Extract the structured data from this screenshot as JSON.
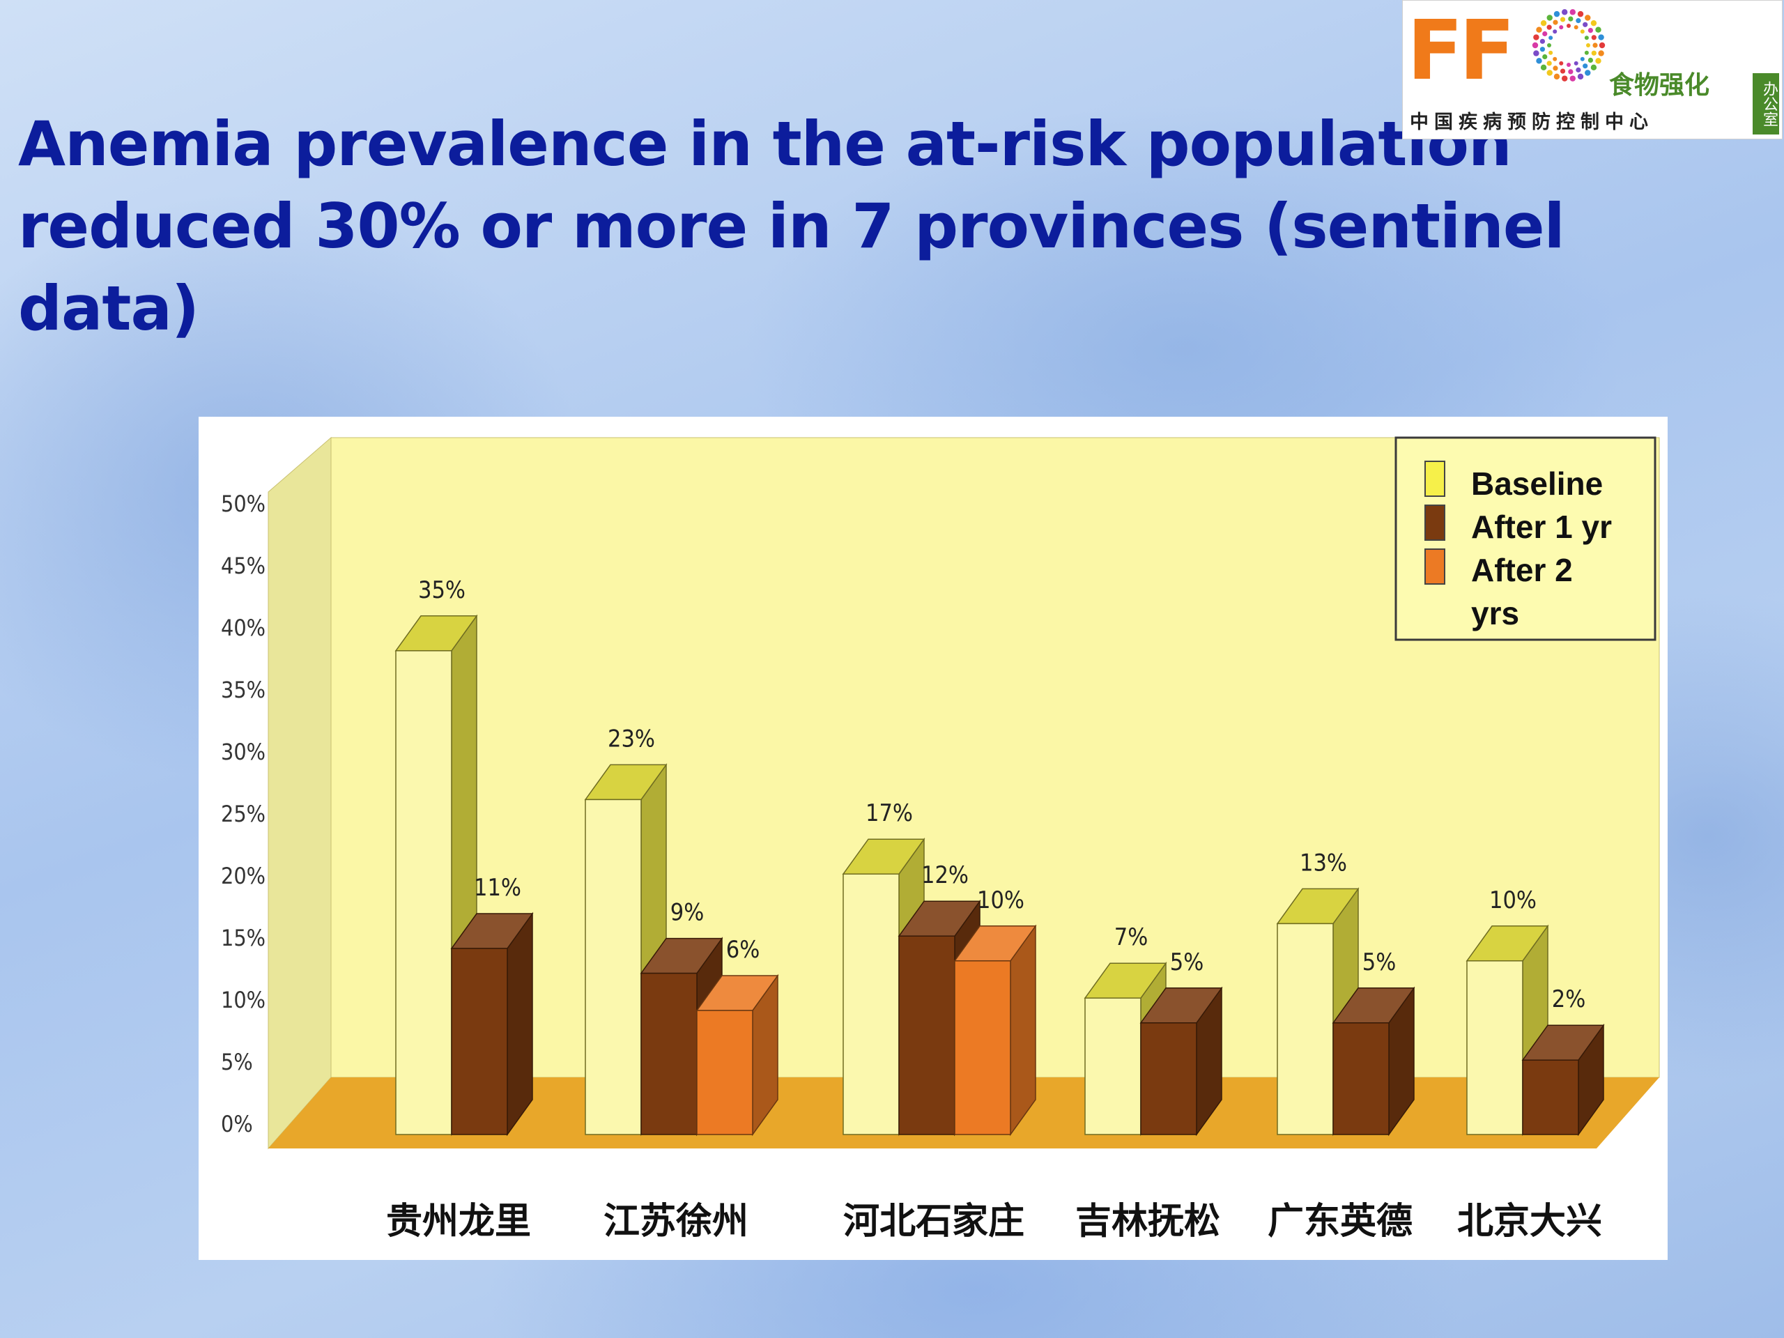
{
  "slide": {
    "title": "Anemia prevalence in the at-risk population reduced 30% or more  in 7 provinces (sentinel data)"
  },
  "logo": {
    "letters": "FF",
    "cn_name": "食物强化",
    "cn_org": "中国疾病预防控制中心",
    "cn_side": "办公室"
  },
  "colors": {
    "title": "#0c1d9c",
    "plot_bg": "#fbf7a6",
    "floor": "#e8a72a",
    "baseline": "#f6f04a",
    "after_1_yr": "#7a3a10",
    "after_2_yrs": "#ec7a24"
  },
  "chart_data": {
    "type": "bar",
    "title": "",
    "xlabel": "",
    "ylabel": "",
    "ylim": [
      0,
      50
    ],
    "y_ticks": [
      "0%",
      "5%",
      "10%",
      "15%",
      "20%",
      "25%",
      "30%",
      "35%",
      "40%",
      "45%",
      "50%"
    ],
    "categories": [
      "贵州龙里",
      "江苏徐州",
      "河北石家庄",
      "吉林抚松",
      "广东英德",
      "北京大兴"
    ],
    "series": [
      {
        "name": "Baseline",
        "values": [
          35,
          23,
          17,
          7,
          13,
          10
        ],
        "labels": [
          "35%",
          "23%",
          "17%",
          "7%",
          "13%",
          "10%"
        ]
      },
      {
        "name": "After 1 yr",
        "values": [
          11,
          9,
          12,
          5,
          5,
          2
        ],
        "labels": [
          "11%",
          "9%",
          "12%",
          "5%",
          "5%",
          "2%"
        ]
      },
      {
        "name": "After 2 yrs",
        "values": [
          null,
          6,
          10,
          null,
          null,
          null
        ],
        "labels": [
          null,
          "6%",
          "10%",
          null,
          null,
          null
        ]
      }
    ],
    "legend": {
      "position": "top-right",
      "entries": [
        "Baseline",
        "After 1 yr",
        "After 2 yrs"
      ]
    },
    "grid": false
  }
}
